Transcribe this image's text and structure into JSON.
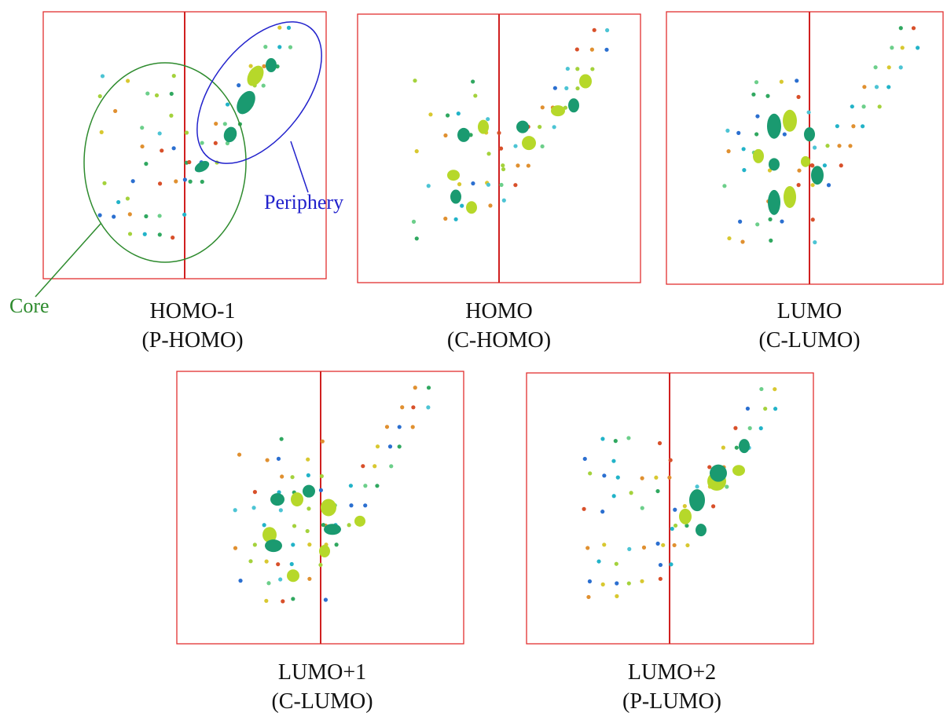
{
  "annotations": {
    "core": "Core",
    "periphery": "Periphery"
  },
  "panels": [
    {
      "name": "HOMO-1",
      "sub": "(P-HOMO)"
    },
    {
      "name": "HOMO",
      "sub": "(C-HOMO)"
    },
    {
      "name": "LUMO",
      "sub": "(C-LUMO)"
    },
    {
      "name": "LUMO+1",
      "sub": "(C-LUMO)"
    },
    {
      "name": "LUMO+2",
      "sub": "(P-LUMO)"
    }
  ]
}
